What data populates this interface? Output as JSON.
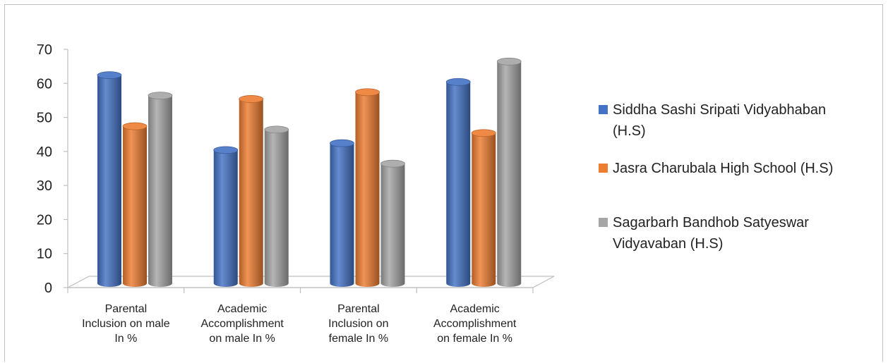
{
  "chart_data": {
    "type": "bar",
    "title": "",
    "xlabel": "",
    "ylabel": "",
    "ylim": [
      0,
      70
    ],
    "yticks": [
      0,
      10,
      20,
      30,
      40,
      50,
      60,
      70
    ],
    "categories": [
      [
        "Parental",
        "Inclusion on male",
        "In %"
      ],
      [
        "Academic",
        "Accomplishment",
        "on male In %"
      ],
      [
        "Parental",
        "Inclusion on",
        "female In %"
      ],
      [
        "Academic",
        "Accomplishment",
        "on female In %"
      ]
    ],
    "series": [
      {
        "name": [
          "Siddha Sashi Sripati Vidyabhaban",
          "(H.S)"
        ],
        "color": "#4472c4",
        "values": [
          62,
          40,
          42,
          60
        ]
      },
      {
        "name": [
          "Jasra Charubala High School (H.S)"
        ],
        "color": "#ed7d31",
        "values": [
          47,
          55,
          57,
          45
        ]
      },
      {
        "name": [
          "Sagarbarh Bandhob Satyeswar",
          "Vidyavaban (H.S)"
        ],
        "color": "#a5a5a5",
        "values": [
          56,
          46,
          36,
          66
        ]
      }
    ],
    "grid": false,
    "legend": "right",
    "style": "3d-cylinder"
  }
}
